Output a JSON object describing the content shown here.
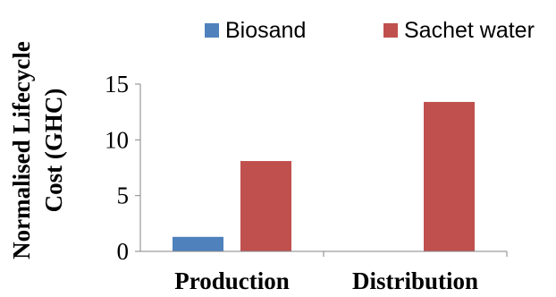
{
  "chart_data": {
    "type": "bar",
    "categories": [
      "Production",
      "Distribution"
    ],
    "series": [
      {
        "name": "Biosand",
        "values": [
          1.3,
          0.0
        ],
        "color": "#4F81BD"
      },
      {
        "name": "Sachet water",
        "values": [
          8.1,
          13.4
        ],
        "color": "#C0504D"
      }
    ],
    "ylabel": [
      "Normalised Lifecycle",
      "Cost (GHC)"
    ],
    "ylim": [
      0,
      15
    ],
    "yticks": [
      0,
      5,
      10,
      15
    ],
    "grid": false,
    "legend": "top"
  }
}
